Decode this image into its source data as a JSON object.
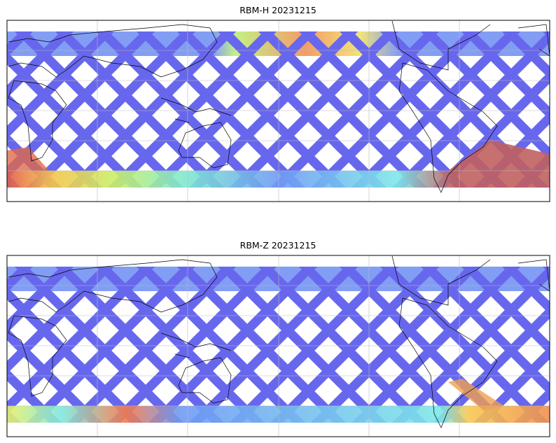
{
  "panels": [
    {
      "title": "RBM-H 20231215"
    },
    {
      "title": "RBM-Z 20231215"
    }
  ]
}
